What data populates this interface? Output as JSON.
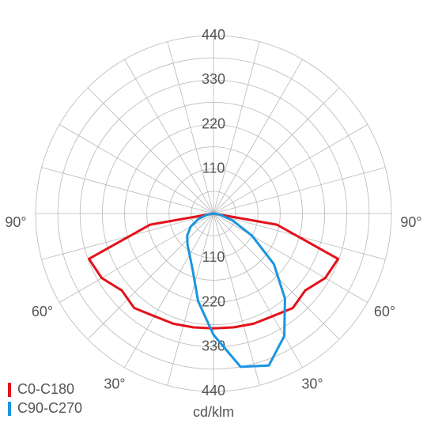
{
  "chart_data": {
    "type": "polar",
    "x": [
      -90,
      -80,
      -70,
      -60,
      -50,
      -40,
      -30,
      -20,
      -10,
      0,
      10,
      20,
      30,
      40,
      50,
      60,
      70,
      80,
      90
    ],
    "series": [
      {
        "name": "C0-C180",
        "color": "#e3121b",
        "values": [
          0,
          159,
          328,
          319,
          296,
          305,
          293,
          290,
          286,
          284,
          286,
          290,
          293,
          305,
          296,
          319,
          328,
          159,
          0
        ]
      },
      {
        "name": "C90-C270",
        "color": "#1b95e0",
        "values": [
          0,
          15,
          40,
          65,
          85,
          100,
          118,
          150,
          220,
          300,
          385,
          400,
          350,
          275,
          195,
          110,
          50,
          15,
          0
        ]
      }
    ],
    "rlim": [
      0,
      440
    ],
    "rticks": [
      110,
      220,
      330,
      440
    ],
    "rminor": [
      55,
      165,
      275,
      385
    ],
    "xticks": [
      {
        "value": -90,
        "label": "90°"
      },
      {
        "value": -60,
        "label": "60°"
      },
      {
        "value": -30,
        "label": "30°"
      },
      {
        "value": 30,
        "label": "30°"
      },
      {
        "value": 60,
        "label": "60°"
      },
      {
        "value": 90,
        "label": "90°"
      }
    ],
    "rlabel": "cd/klm",
    "grid": true,
    "legend": "lower-left"
  }
}
